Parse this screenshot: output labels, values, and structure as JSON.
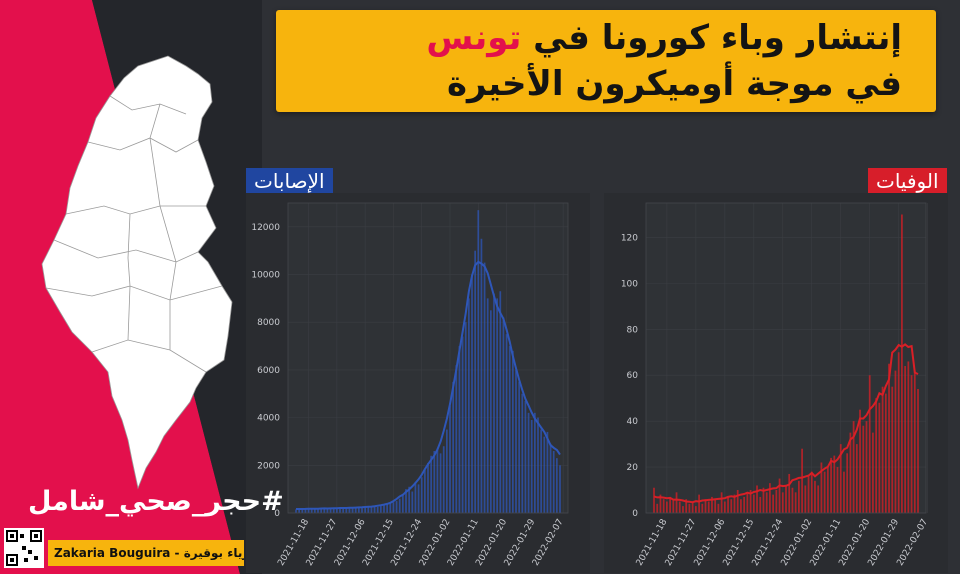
{
  "title": {
    "line1_parts": [
      "إنتشار وباء ",
      "كورونا",
      " في ",
      "تونس"
    ],
    "line2_parts": [
      "في موجة ",
      "أوميكرون",
      " الأخيرة"
    ]
  },
  "labels": {
    "cases_tag": "الإصابات",
    "deaths_tag": "الوفيات",
    "hashtag": "#حجر_صحي_شامل",
    "credit": "Zakaria Bouguira - زكرياء بوقيرة"
  },
  "colors": {
    "accent_red": "#e3104c",
    "title_bg": "#f7b40d",
    "cases": "#2e56b8",
    "deaths": "#d91f26"
  },
  "chart_data": [
    {
      "type": "bar",
      "name": "cases",
      "x_ticks": [
        "2021-11-18",
        "2021-11-27",
        "2021-12-06",
        "2021-12-15",
        "2021-12-24",
        "2022-01-02",
        "2022-01-11",
        "2022-01-20",
        "2022-01-29",
        "2022-02-07"
      ],
      "y_ticks": [
        0,
        2000,
        4000,
        6000,
        8000,
        10000,
        12000
      ],
      "ylim": [
        0,
        13000
      ],
      "x_start": "2021-11-14",
      "values": [
        150,
        180,
        140,
        200,
        170,
        160,
        190,
        210,
        180,
        150,
        200,
        220,
        190,
        170,
        230,
        210,
        200,
        240,
        220,
        190,
        250,
        230,
        260,
        240,
        280,
        300,
        260,
        320,
        350,
        380,
        400,
        450,
        500,
        600,
        800,
        1000,
        1100,
        900,
        1300,
        1200,
        1500,
        1800,
        2100,
        2400,
        2600,
        2700,
        2500,
        2800,
        3500,
        4500,
        5500,
        6200,
        7000,
        7400,
        8000,
        9000,
        10000,
        11000,
        12700,
        11500,
        10500,
        9000,
        8500,
        9200,
        9000,
        9300,
        8200,
        7500,
        7000,
        6800,
        6000,
        5500,
        5000,
        4700,
        4200,
        3900,
        4200,
        4000,
        3500,
        3200,
        3400,
        2900,
        2600,
        2300,
        2000
      ]
    },
    {
      "type": "bar",
      "name": "deaths",
      "x_ticks": [
        "2021-11-18",
        "2021-11-27",
        "2021-12-06",
        "2021-12-15",
        "2021-12-24",
        "2022-01-02",
        "2022-01-11",
        "2022-01-20",
        "2022-01-29",
        "2022-02-07"
      ],
      "y_ticks": [
        0,
        20,
        40,
        60,
        80,
        100,
        120
      ],
      "ylim": [
        0,
        135
      ],
      "x_start": "2021-11-14",
      "values": [
        11,
        4,
        8,
        6,
        5,
        7,
        6,
        9,
        5,
        3,
        6,
        4,
        5,
        3,
        8,
        4,
        6,
        5,
        7,
        6,
        4,
        9,
        5,
        7,
        6,
        8,
        10,
        6,
        7,
        9,
        10,
        8,
        12,
        7,
        11,
        9,
        13,
        8,
        10,
        15,
        9,
        12,
        17,
        11,
        9,
        14,
        28,
        12,
        16,
        18,
        14,
        12,
        22,
        18,
        20,
        24,
        25,
        20,
        30,
        18,
        26,
        35,
        40,
        30,
        45,
        38,
        40,
        60,
        35,
        50,
        48,
        55,
        52,
        65,
        55,
        62,
        70,
        130,
        64,
        66,
        60,
        62,
        54
      ]
    }
  ]
}
